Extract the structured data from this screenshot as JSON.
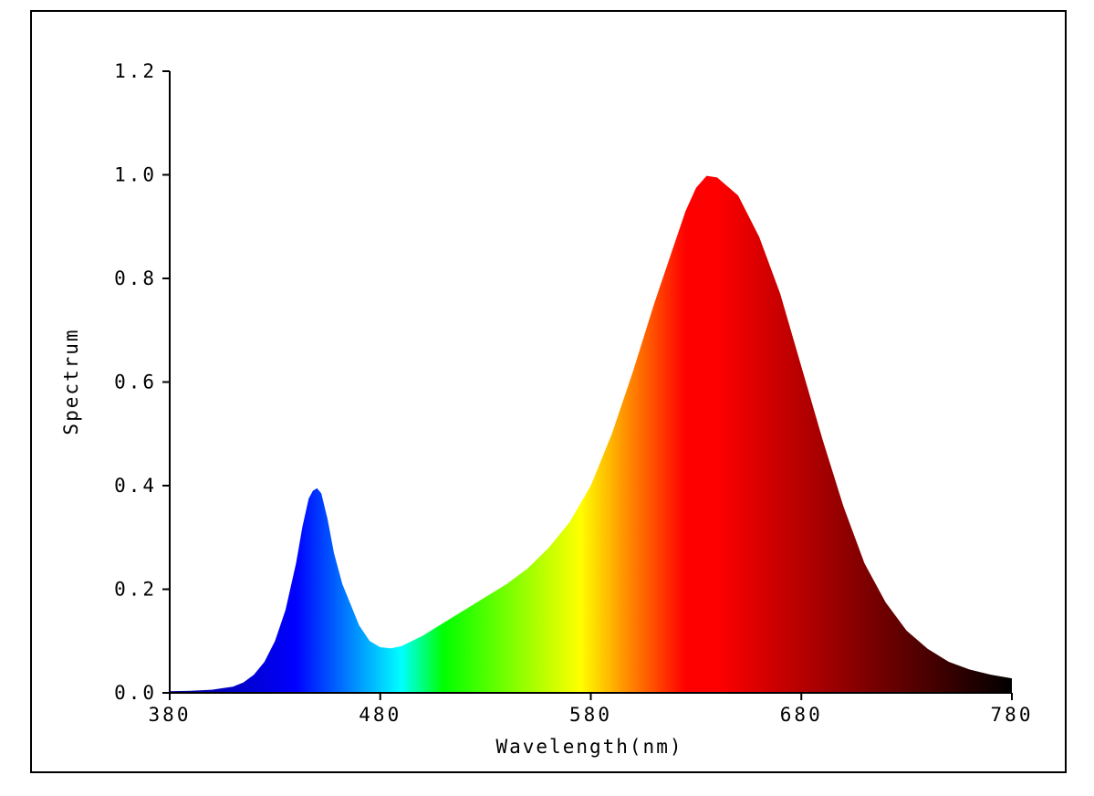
{
  "chart_data": {
    "type": "area",
    "title": "",
    "xlabel": "Wavelength(nm)",
    "ylabel": "Spectrum",
    "xlim": [
      380,
      780
    ],
    "ylim": [
      0,
      1.2
    ],
    "xticks": [
      380,
      480,
      580,
      680,
      780
    ],
    "xtick_labels": [
      "380",
      "480",
      "580",
      "680",
      "780"
    ],
    "yticks": [
      0.0,
      0.2,
      0.4,
      0.6,
      0.8,
      1.0,
      1.2
    ],
    "ytick_labels": [
      "0.0",
      "0.2",
      "0.4",
      "0.6",
      "0.8",
      "1.0",
      "1.2"
    ],
    "fill": "visible-spectrum-colormap",
    "grid": false,
    "series": [
      {
        "name": "Spectrum",
        "x": [
          380,
          390,
          400,
          410,
          415,
          420,
          425,
          430,
          435,
          440,
          443,
          446,
          448,
          450,
          452,
          455,
          458,
          462,
          466,
          470,
          475,
          480,
          485,
          490,
          495,
          500,
          510,
          520,
          530,
          540,
          550,
          560,
          570,
          580,
          590,
          600,
          610,
          620,
          625,
          630,
          635,
          640,
          650,
          660,
          670,
          680,
          690,
          700,
          710,
          720,
          730,
          740,
          750,
          760,
          770,
          780
        ],
        "y": [
          0.003,
          0.004,
          0.006,
          0.012,
          0.02,
          0.035,
          0.06,
          0.1,
          0.16,
          0.25,
          0.32,
          0.375,
          0.39,
          0.395,
          0.385,
          0.335,
          0.27,
          0.21,
          0.17,
          0.13,
          0.1,
          0.088,
          0.086,
          0.09,
          0.1,
          0.11,
          0.135,
          0.16,
          0.185,
          0.21,
          0.24,
          0.28,
          0.33,
          0.4,
          0.5,
          0.62,
          0.75,
          0.87,
          0.93,
          0.975,
          0.998,
          0.995,
          0.96,
          0.88,
          0.77,
          0.63,
          0.49,
          0.36,
          0.25,
          0.175,
          0.12,
          0.085,
          0.06,
          0.045,
          0.035,
          0.028
        ]
      }
    ]
  }
}
